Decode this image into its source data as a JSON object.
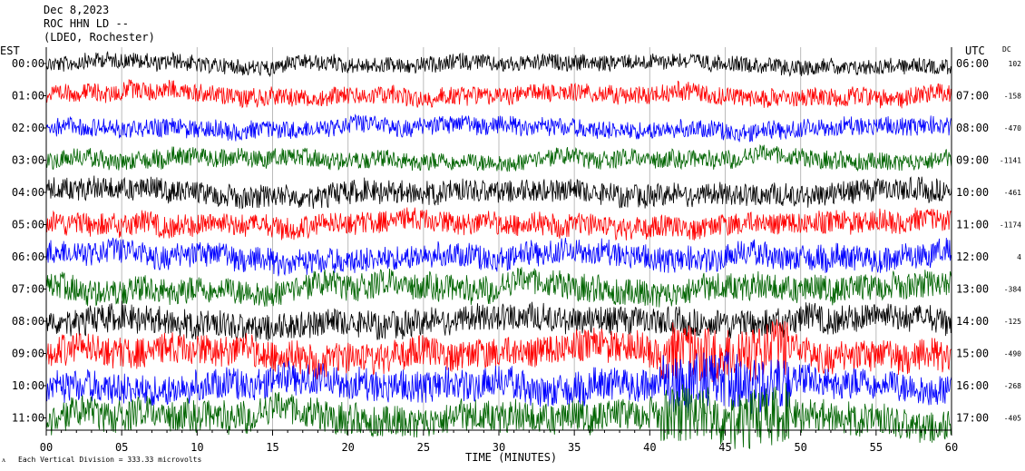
{
  "header": {
    "date": "Dec 8,2023",
    "station": "ROC HHN LD --",
    "network": "(LDEO, Rochester)"
  },
  "labels": {
    "left_tz": "EST",
    "right_tz": "UTC",
    "dc": "DC",
    "time_axis": "TIME (MINUTES)",
    "scale_note": "Each Vertical Division = 333.33 microvolts"
  },
  "colors": [
    "#000000",
    "#ff0000",
    "#0000ff",
    "#006400"
  ],
  "chart_data": {
    "type": "line",
    "x_label": "TIME (MINUTES)",
    "x_range": [
      0,
      60
    ],
    "x_ticks": [
      "00",
      "05",
      "10",
      "15",
      "20",
      "25",
      "30",
      "35",
      "40",
      "45",
      "50",
      "55",
      "60"
    ],
    "rows": [
      {
        "est": "00:00",
        "utc": "06:00",
        "dc": "102",
        "color": "#000000",
        "amplitude": 0.35
      },
      {
        "est": "01:00",
        "utc": "07:00",
        "dc": "-158",
        "color": "#ff0000",
        "amplitude": 0.4
      },
      {
        "est": "02:00",
        "utc": "08:00",
        "dc": "-470",
        "color": "#0000ff",
        "amplitude": 0.4
      },
      {
        "est": "03:00",
        "utc": "09:00",
        "dc": "-1141",
        "color": "#006400",
        "amplitude": 0.4
      },
      {
        "est": "04:00",
        "utc": "10:00",
        "dc": "-461",
        "color": "#000000",
        "amplitude": 0.5
      },
      {
        "est": "05:00",
        "utc": "11:00",
        "dc": "-1174",
        "color": "#ff0000",
        "amplitude": 0.5
      },
      {
        "est": "06:00",
        "utc": "12:00",
        "dc": "4",
        "color": "#0000ff",
        "amplitude": 0.55
      },
      {
        "est": "07:00",
        "utc": "13:00",
        "dc": "-384",
        "color": "#006400",
        "amplitude": 0.6
      },
      {
        "est": "08:00",
        "utc": "14:00",
        "dc": "-125",
        "color": "#000000",
        "amplitude": 0.6
      },
      {
        "est": "09:00",
        "utc": "15:00",
        "dc": "-490",
        "color": "#ff0000",
        "amplitude": 0.7
      },
      {
        "est": "10:00",
        "utc": "16:00",
        "dc": "-268",
        "color": "#0000ff",
        "amplitude": 0.7
      },
      {
        "est": "11:00",
        "utc": "17:00",
        "dc": "-405",
        "color": "#006400",
        "amplitude": 0.7
      }
    ]
  }
}
